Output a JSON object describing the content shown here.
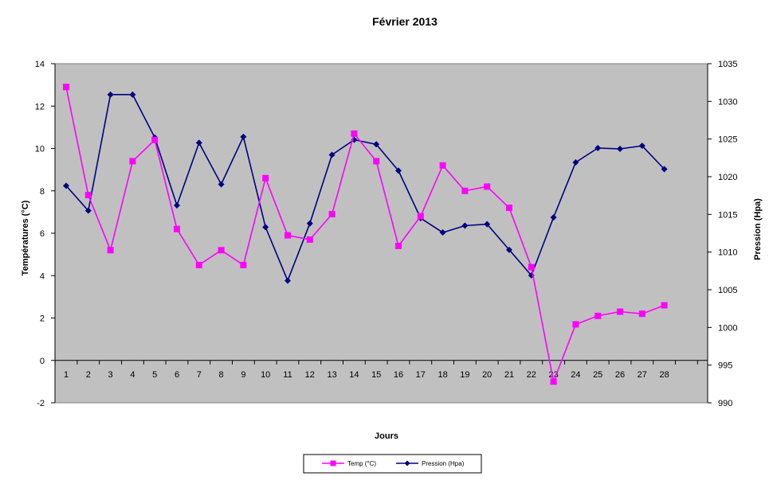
{
  "chart_data": {
    "type": "line",
    "title": "Février 2013",
    "xlabel": "Jours",
    "ylabel_left": "Températures  (°C)",
    "ylabel_right": "Pression (Hpa)",
    "categories": [
      "1",
      "2",
      "3",
      "4",
      "5",
      "6",
      "7",
      "8",
      "9",
      "10",
      "11",
      "12",
      "13",
      "14",
      "15",
      "16",
      "17",
      "18",
      "19",
      "20",
      "21",
      "22",
      "23",
      "24",
      "25",
      "26",
      "27",
      "28"
    ],
    "y_left": {
      "min": -2,
      "max": 14,
      "ticks": [
        -2,
        0,
        2,
        4,
        6,
        8,
        10,
        12,
        14
      ]
    },
    "y_right": {
      "min": 990,
      "max": 1035,
      "ticks": [
        990,
        995,
        1000,
        1005,
        1010,
        1015,
        1020,
        1025,
        1030,
        1035
      ]
    },
    "plot_background": "#c0c0c0",
    "grid": false,
    "legend_position": "bottom",
    "series": [
      {
        "name": "Temp (°C)",
        "axis": "left",
        "color": "#ff00ff",
        "marker": "square",
        "values": [
          12.9,
          7.8,
          5.2,
          9.4,
          10.4,
          6.2,
          4.5,
          5.2,
          4.5,
          8.6,
          5.9,
          5.7,
          6.9,
          10.7,
          9.4,
          5.4,
          6.8,
          9.2,
          8.0,
          8.2,
          7.2,
          4.4,
          -1.0,
          1.7,
          2.1,
          2.3,
          2.2,
          2.6
        ]
      },
      {
        "name": "Pression (Hpa)",
        "axis": "right",
        "color": "#000080",
        "marker": "diamond",
        "values": [
          1018.8,
          1015.5,
          1030.9,
          1030.9,
          1025.2,
          1016.2,
          1024.5,
          1019.0,
          1025.3,
          1013.3,
          1006.2,
          1013.8,
          1022.9,
          1024.9,
          1024.3,
          1020.8,
          1014.5,
          1012.6,
          1013.5,
          1013.7,
          1010.3,
          1006.9,
          1014.6,
          1021.9,
          1023.8,
          1023.7,
          1024.1,
          1021.0
        ]
      }
    ]
  }
}
